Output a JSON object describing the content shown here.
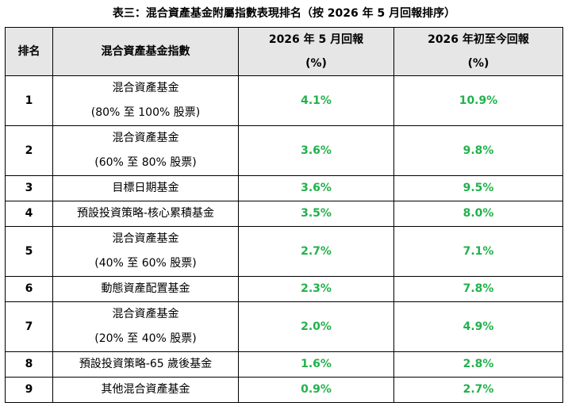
{
  "title": "表三：混合資產基金附屬指數表現排名（按 2026 年 5 月回報排序）",
  "headers": {
    "rank": "排名",
    "index": "混合資產基金指數",
    "may_line1": "2026 年 5 月回報",
    "may_line2": "(%)",
    "ytd_line1": "2026 年初至今回報",
    "ytd_line2": "(%)"
  },
  "rows": [
    {
      "rank": "1",
      "name": "混合資產基金",
      "sub": "(80% 至 100% 股票)",
      "may": "4.1%",
      "ytd": "10.9%"
    },
    {
      "rank": "2",
      "name": "混合資產基金",
      "sub": "(60% 至 80% 股票)",
      "may": "3.6%",
      "ytd": "9.8%"
    },
    {
      "rank": "3",
      "name": "目標日期基金",
      "sub": "",
      "may": "3.6%",
      "ytd": "9.5%"
    },
    {
      "rank": "4",
      "name": "預設投資策略-核心累積基金",
      "sub": "",
      "may": "3.5%",
      "ytd": "8.0%"
    },
    {
      "rank": "5",
      "name": "混合資產基金",
      "sub": "(40% 至 60% 股票)",
      "may": "2.7%",
      "ytd": "7.1%"
    },
    {
      "rank": "6",
      "name": "動態資產配置基金",
      "sub": "",
      "may": "2.3%",
      "ytd": "7.8%"
    },
    {
      "rank": "7",
      "name": "混合資產基金",
      "sub": "(20% 至 40% 股票)",
      "may": "2.0%",
      "ytd": "4.9%"
    },
    {
      "rank": "8",
      "name": "預設投資策略-65 歲後基金",
      "sub": "",
      "may": "1.6%",
      "ytd": "2.8%"
    },
    {
      "rank": "9",
      "name": "其他混合資產基金",
      "sub": "",
      "may": "0.9%",
      "ytd": "2.7%"
    }
  ],
  "colors": {
    "value_green": "#22b14c",
    "header_bg": "#e6e6e6"
  }
}
